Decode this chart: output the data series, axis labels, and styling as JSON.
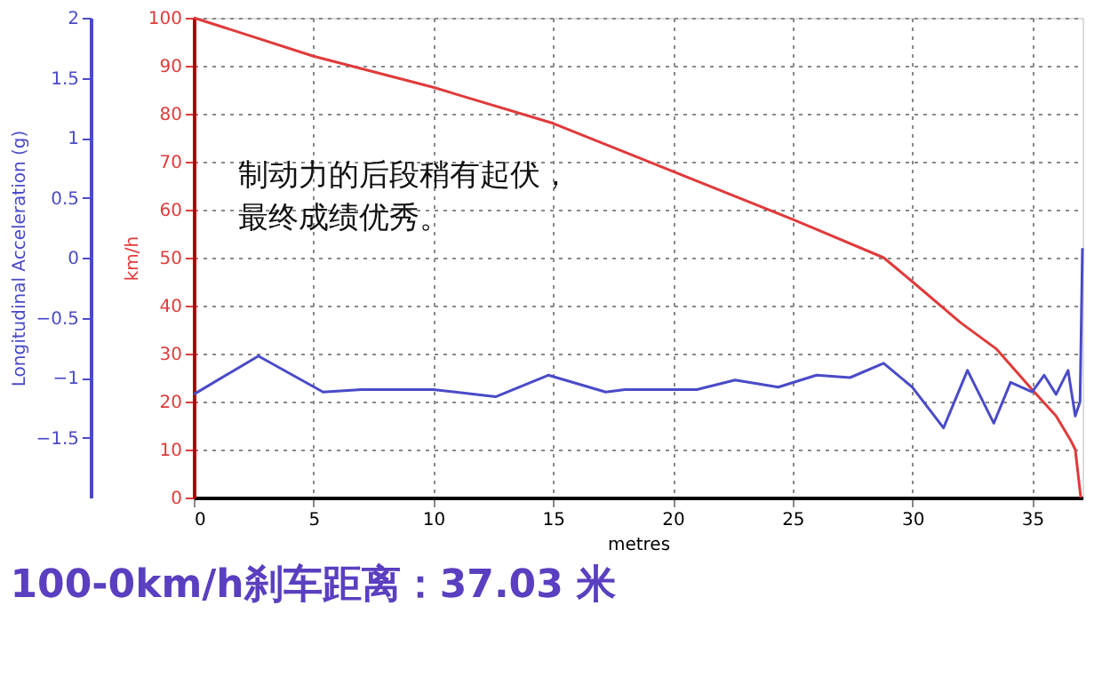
{
  "chart_data": {
    "type": "line",
    "title": "100-0km/h刹车距离：37.03 米",
    "xlabel": "metres",
    "ylabel": "km/h",
    "y2label": "Longitudinal Acceleration (g)",
    "annotations": [
      "制动力的后段稍有起伏，",
      "最终成绩优秀。"
    ],
    "xlim": [
      0,
      37.1
    ],
    "xticks": [
      0,
      5,
      10,
      15,
      20,
      25,
      30,
      35
    ],
    "ylim": [
      0,
      100
    ],
    "yticks": [
      0,
      10,
      20,
      30,
      40,
      50,
      60,
      70,
      80,
      90,
      100
    ],
    "y2lim": [
      -2,
      2
    ],
    "y2ticks": [
      -1.5,
      -1,
      -0.5,
      0,
      0.5,
      1,
      1.5,
      2
    ],
    "grid": true,
    "marker": "none",
    "line_style": "solid",
    "series": [
      {
        "color": "#e03a3a",
        "x": [
          0,
          5,
          10,
          15,
          20,
          25,
          28.8,
          30,
          32,
          33.5,
          35,
          36,
          36.6,
          36.8,
          37.03
        ],
        "values": [
          100,
          92,
          85.5,
          78,
          68,
          58,
          50,
          45,
          36.5,
          31,
          22.5,
          17,
          12,
          10,
          0
        ]
      },
      {
        "color": "#4a4ac8",
        "axis": "y2",
        "x": [
          0,
          2.7,
          5.4,
          7,
          10,
          12.6,
          14.8,
          17.2,
          18,
          21,
          22.6,
          24.4,
          26,
          27.4,
          28.8,
          30,
          31.3,
          32.3,
          33.4,
          34.1,
          35,
          35.5,
          36,
          36.5,
          36.8,
          37.0,
          37.1
        ],
        "values": [
          -1.14,
          -0.82,
          -1.12,
          -1.1,
          -1.1,
          -1.16,
          -0.98,
          -1.12,
          -1.1,
          -1.1,
          -1.02,
          -1.08,
          -0.98,
          -1.0,
          -0.88,
          -1.08,
          -1.42,
          -0.94,
          -1.38,
          -1.04,
          -1.12,
          -0.98,
          -1.14,
          -0.94,
          -1.32,
          -1.2,
          0.08
        ]
      }
    ]
  }
}
